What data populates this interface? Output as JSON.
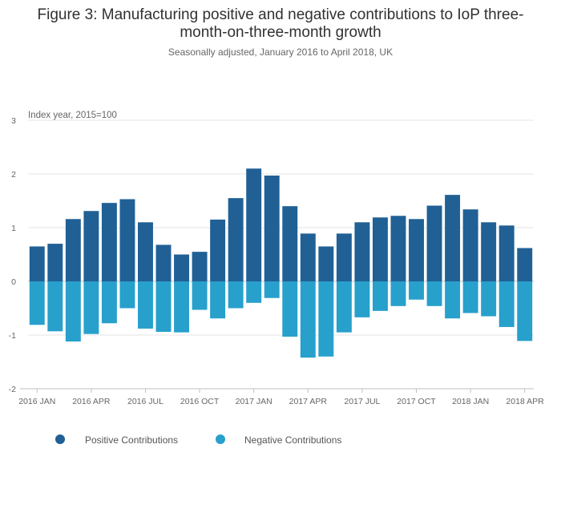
{
  "title_lines": [
    "Figure 3: Manufacturing positive and negative contributions to IoP three-",
    "month-on-three-month growth"
  ],
  "subtitle": "Seasonally adjusted, January 2016 to April 2018, UK",
  "chart_data": {
    "type": "bar",
    "stacked": true,
    "title": "Figure 3: Manufacturing positive and negative contributions to IoP three-month-on-three-month growth",
    "subtitle": "Seasonally adjusted, January 2016 to April 2018, UK",
    "ylabel": "Index year, 2015=100",
    "ylim": [
      -2,
      3
    ],
    "yticks": [
      "3",
      "2",
      "1",
      "0",
      "-1",
      "-2"
    ],
    "ytick_values": [
      3,
      2,
      1,
      0,
      -1,
      -2
    ],
    "grid": true,
    "legend_position": "bottom-left",
    "categories": [
      "2016 JAN",
      "2016 FEB",
      "2016 MAR",
      "2016 APR",
      "2016 MAY",
      "2016 JUN",
      "2016 JUL",
      "2016 AUG",
      "2016 SEP",
      "2016 OCT",
      "2016 NOV",
      "2016 DEC",
      "2017 JAN",
      "2017 FEB",
      "2017 MAR",
      "2017 APR",
      "2017 MAY",
      "2017 JUN",
      "2017 JUL",
      "2017 AUG",
      "2017 SEP",
      "2017 OCT",
      "2017 NOV",
      "2017 DEC",
      "2018 JAN",
      "2018 FEB",
      "2018 MAR",
      "2018 APR"
    ],
    "x_tick_labels": [
      {
        "index": 0,
        "label": "2016 JAN"
      },
      {
        "index": 3,
        "label": "2016 APR"
      },
      {
        "index": 6,
        "label": "2016 JUL"
      },
      {
        "index": 9,
        "label": "2016 OCT"
      },
      {
        "index": 12,
        "label": "2017 JAN"
      },
      {
        "index": 15,
        "label": "2017 APR"
      },
      {
        "index": 18,
        "label": "2017 JUL"
      },
      {
        "index": 21,
        "label": "2017 OCT"
      },
      {
        "index": 24,
        "label": "2018 JAN"
      },
      {
        "index": 27,
        "label": "2018 APR"
      }
    ],
    "series": [
      {
        "name": "Positive Contributions",
        "color": "#206095",
        "values": [
          0.65,
          0.7,
          1.16,
          1.31,
          1.46,
          1.53,
          1.1,
          0.68,
          0.5,
          0.55,
          1.15,
          1.55,
          2.1,
          1.97,
          1.4,
          0.89,
          0.65,
          0.89,
          1.1,
          1.19,
          1.22,
          1.16,
          1.41,
          1.61,
          1.34,
          1.1,
          1.04,
          0.62
        ]
      },
      {
        "name": "Negative Contributions",
        "color": "#27a0cc",
        "values": [
          -0.81,
          -0.93,
          -1.12,
          -0.98,
          -0.78,
          -0.5,
          -0.88,
          -0.94,
          -0.95,
          -0.53,
          -0.69,
          -0.5,
          -0.4,
          -0.31,
          -1.03,
          -1.42,
          -1.4,
          -0.95,
          -0.67,
          -0.55,
          -0.46,
          -0.34,
          -0.46,
          -0.69,
          -0.59,
          -0.65,
          -0.85,
          -1.11
        ]
      }
    ]
  }
}
